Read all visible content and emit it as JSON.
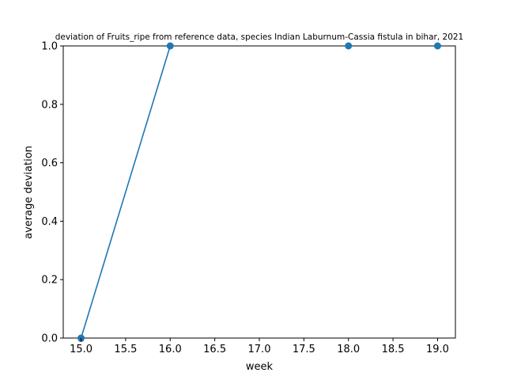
{
  "chart_data": {
    "type": "line",
    "title": "deviation of Fruits_ripe from reference data, species Indian Laburnum-Cassia fistula in bihar, 2021",
    "xlabel": "week",
    "ylabel": "average deviation",
    "xlim": [
      14.8,
      19.2
    ],
    "ylim": [
      0.0,
      1.0
    ],
    "x_ticks": [
      "15.0",
      "15.5",
      "16.0",
      "16.5",
      "17.0",
      "17.5",
      "18.0",
      "18.5",
      "19.0"
    ],
    "y_ticks": [
      "0.0",
      "0.2",
      "0.4",
      "0.6",
      "0.8",
      "1.0"
    ],
    "grid": false,
    "series": [
      {
        "color": "#1f77b4",
        "x": [
          15,
          16,
          18,
          19
        ],
        "y": [
          0.0,
          1.0,
          1.0,
          1.0
        ],
        "line_x": [
          15,
          16
        ],
        "line_y": [
          0.0,
          1.0
        ]
      }
    ],
    "extra_markers": [
      {
        "x": 15,
        "y": 0.0,
        "color": "#d62728"
      }
    ]
  }
}
